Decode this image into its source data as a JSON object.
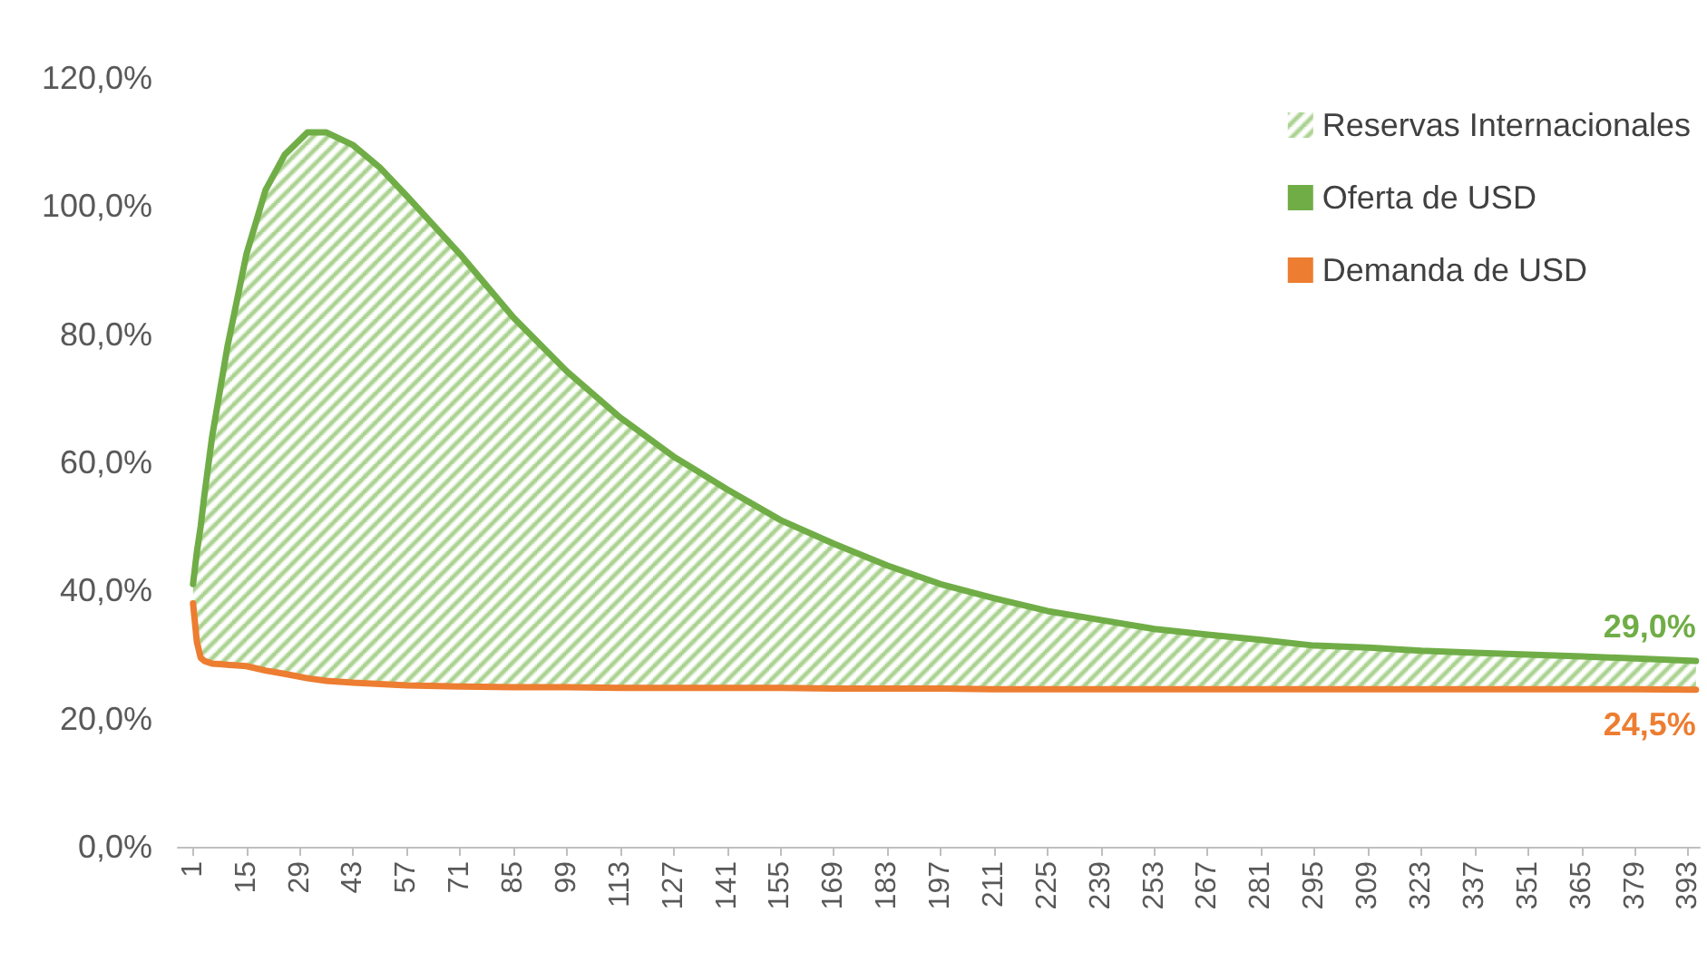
{
  "chart_data": {
    "type": "line",
    "x": [
      1,
      2,
      3,
      4,
      6,
      8,
      10,
      15,
      20,
      25,
      31,
      36,
      43,
      50,
      57,
      71,
      85,
      99,
      113,
      127,
      141,
      155,
      169,
      183,
      197,
      211,
      225,
      239,
      253,
      267,
      281,
      295,
      309,
      323,
      337,
      351,
      365,
      379,
      395
    ],
    "xlim": [
      -3,
      396
    ],
    "xticks": [
      1,
      15,
      29,
      43,
      57,
      71,
      85,
      99,
      113,
      127,
      141,
      155,
      169,
      183,
      197,
      211,
      225,
      239,
      253,
      267,
      281,
      295,
      309,
      323,
      337,
      351,
      365,
      379,
      393
    ],
    "ylim": [
      0,
      120
    ],
    "yticks": [
      {
        "value": 0,
        "label": "0,0%"
      },
      {
        "value": 20,
        "label": "20,0%"
      },
      {
        "value": 40,
        "label": "40,0%"
      },
      {
        "value": 60,
        "label": "60,0%"
      },
      {
        "value": 80,
        "label": "80,0%"
      },
      {
        "value": 100,
        "label": "100,0%"
      },
      {
        "value": 120,
        "label": "120,0%"
      }
    ],
    "grid": false,
    "legend": "top right",
    "marker": "none",
    "line_style": "solid",
    "series": [
      {
        "name": "Reservas Internacionales",
        "type": "area",
        "color": "#a9d18e",
        "values": [
          null,
          null,
          null,
          null,
          null,
          null,
          null,
          null,
          null,
          null,
          null,
          null,
          null,
          null,
          null,
          null,
          null,
          null,
          null,
          null,
          null,
          null,
          null,
          null,
          null,
          null,
          null,
          null,
          null,
          null,
          null,
          null,
          null,
          null,
          null,
          null,
          null,
          null,
          null
        ],
        "lower": [
          38,
          32,
          29.5,
          29,
          28.6,
          28.5,
          28.4,
          28.2,
          27.5,
          27,
          26.3,
          25.9,
          25.6,
          25.4,
          25.2,
          25,
          24.9,
          24.9,
          24.8,
          24.8,
          24.8,
          24.8,
          24.7,
          24.7,
          24.7,
          24.6,
          24.6,
          24.6,
          24.6,
          24.6,
          24.6,
          24.6,
          24.6,
          24.6,
          24.6,
          24.6,
          24.6,
          24.6,
          24.5
        ],
        "upper": [
          41,
          46,
          50,
          55,
          64,
          71,
          78,
          92.5,
          102.5,
          108,
          111.5,
          111.5,
          109.5,
          106,
          101.6,
          92.5,
          82.6,
          74.2,
          67,
          60.9,
          55.8,
          51,
          47.3,
          43.9,
          41,
          38.8,
          36.8,
          35.4,
          34,
          33.1,
          32.3,
          31.4,
          31.1,
          30.6,
          30.3,
          30,
          29.7,
          29.4,
          29.0
        ]
      },
      {
        "name": "Oferta de USD",
        "color": "#70ad47",
        "values": [
          41,
          46,
          50,
          55,
          64,
          71,
          78,
          92.5,
          102.5,
          108,
          111.5,
          111.5,
          109.5,
          106,
          101.6,
          92.5,
          82.6,
          74.2,
          67,
          60.9,
          55.8,
          51,
          47.3,
          43.9,
          41,
          38.8,
          36.8,
          35.4,
          34,
          33.1,
          32.3,
          31.4,
          31.1,
          30.6,
          30.3,
          30,
          29.7,
          29.4,
          29.0
        ],
        "value_labels": [
          null,
          null,
          null,
          null,
          null,
          null,
          null,
          null,
          null,
          null,
          null,
          null,
          null,
          null,
          null,
          null,
          null,
          null,
          null,
          null,
          null,
          null,
          null,
          null,
          null,
          null,
          null,
          null,
          null,
          null,
          null,
          null,
          null,
          null,
          null,
          null,
          null,
          null,
          "29,0%"
        ]
      },
      {
        "name": "Demanda de USD",
        "color": "#ed7d31",
        "values": [
          38,
          32,
          29.5,
          29,
          28.6,
          28.5,
          28.4,
          28.2,
          27.5,
          27,
          26.3,
          25.9,
          25.6,
          25.4,
          25.2,
          25,
          24.9,
          24.9,
          24.8,
          24.8,
          24.8,
          24.8,
          24.7,
          24.7,
          24.7,
          24.6,
          24.6,
          24.6,
          24.6,
          24.6,
          24.6,
          24.6,
          24.6,
          24.6,
          24.6,
          24.6,
          24.6,
          24.6,
          24.5
        ],
        "value_labels": [
          null,
          null,
          null,
          null,
          null,
          null,
          null,
          null,
          null,
          null,
          null,
          null,
          null,
          null,
          null,
          null,
          null,
          null,
          null,
          null,
          null,
          null,
          null,
          null,
          null,
          null,
          null,
          null,
          null,
          null,
          null,
          null,
          null,
          null,
          null,
          null,
          null,
          null,
          "24,5%"
        ]
      }
    ]
  }
}
